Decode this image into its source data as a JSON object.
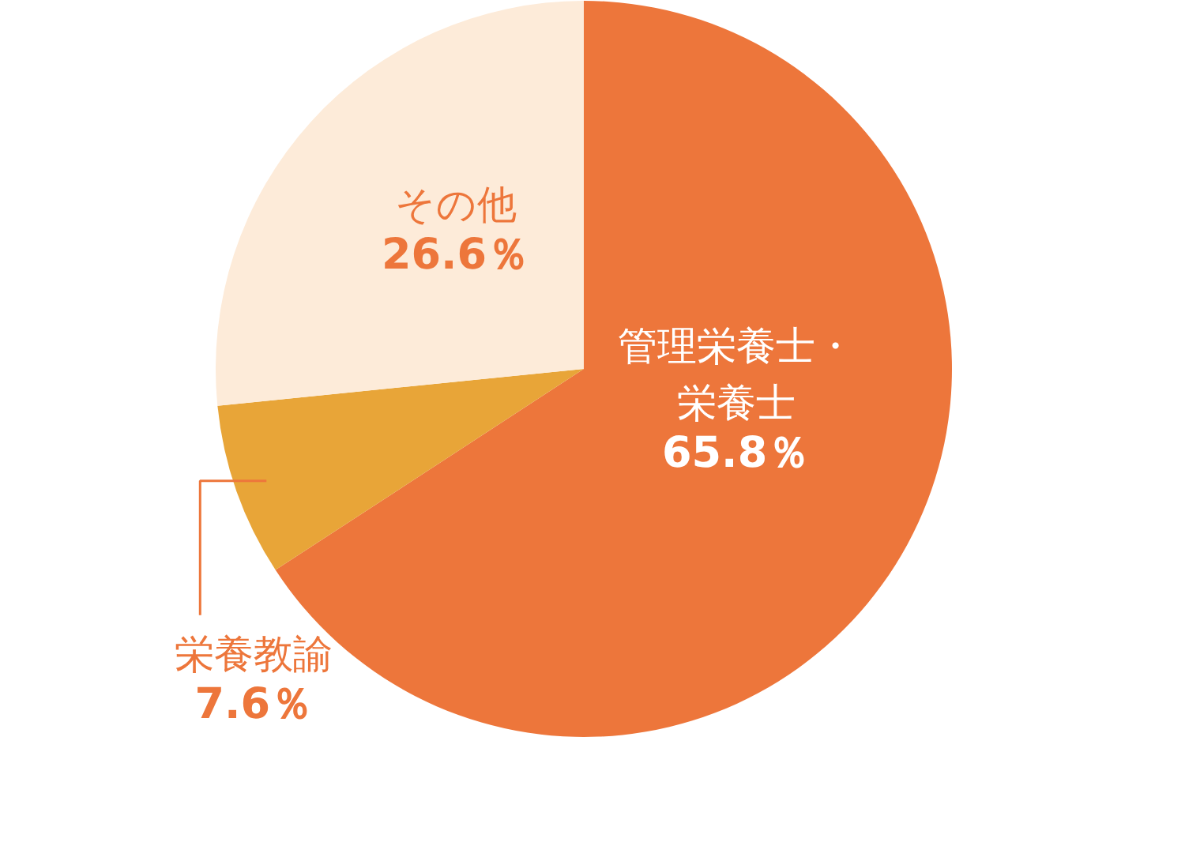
{
  "chart_data": {
    "type": "pie",
    "categories": [
      "管理栄養士・栄養士",
      "栄養教諭",
      "その他"
    ],
    "values": [
      65.8,
      7.6,
      26.6
    ],
    "colors": [
      "#ed763b",
      "#e8a538",
      "#fdebd9"
    ],
    "value_labels": [
      "65.8％",
      "7.6％",
      "26.6％"
    ]
  }
}
